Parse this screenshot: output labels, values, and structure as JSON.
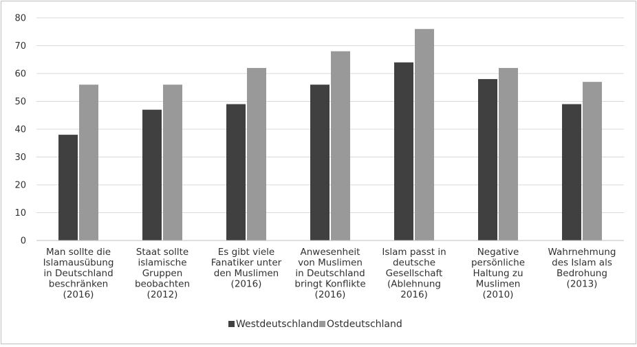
{
  "chart_data": {
    "type": "bar",
    "title": "",
    "xlabel": "",
    "ylabel": "",
    "ylim": [
      0,
      80
    ],
    "yticks": [
      0,
      10,
      20,
      30,
      40,
      50,
      60,
      70,
      80
    ],
    "grid": true,
    "legend_position": "bottom",
    "categories": [
      [
        "Man sollte die",
        "Islamausübung",
        "in Deutschland",
        "beschränken",
        "(2016)"
      ],
      [
        "Staat sollte",
        "islamische",
        "Gruppen",
        "beobachten",
        "(2012)"
      ],
      [
        "Es gibt viele",
        "Fanatiker unter",
        "den Muslimen",
        "(2016)"
      ],
      [
        "Anwesenheit",
        "von Muslimen",
        "in Deutschland",
        "bringt Konflikte",
        "(2016)"
      ],
      [
        "Islam passt in",
        "deutsche",
        "Gesellschaft",
        "(Ablehnung",
        "2016)"
      ],
      [
        "Negative",
        "persönliche",
        "Haltung zu",
        "Muslimen",
        "(2010)"
      ],
      [
        "Wahrnehmung",
        "des Islam als",
        "Bedrohung",
        "(2013)"
      ]
    ],
    "series": [
      {
        "name": "Westdeutschland",
        "color": "#404040",
        "values": [
          38,
          47,
          49,
          56,
          64,
          58,
          49
        ]
      },
      {
        "name": "Ostdeutschland",
        "color": "#999999",
        "values": [
          56,
          56,
          62,
          68,
          76,
          62,
          57
        ]
      }
    ]
  }
}
